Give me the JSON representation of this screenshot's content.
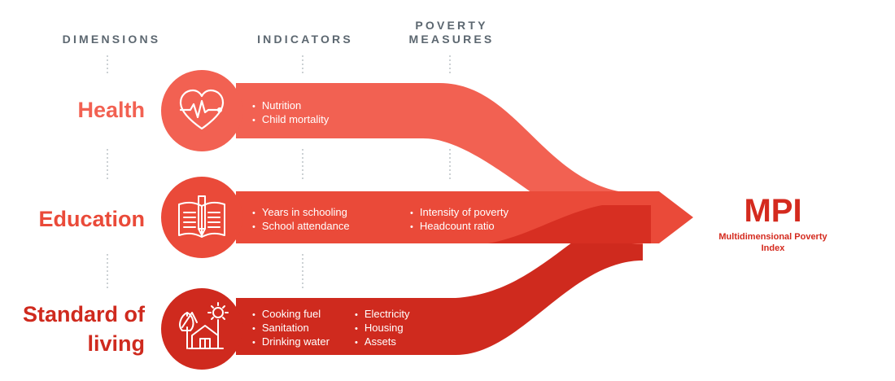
{
  "headers": {
    "dimensions": "DIMENSIONS",
    "indicators": "INDICATORS",
    "poverty_measures_line1": "POVERTY",
    "poverty_measures_line2": "MEASURES"
  },
  "dimensions": {
    "health": "Health",
    "education": "Education",
    "living_line1": "Standard of",
    "living_line2": "living"
  },
  "indicators": {
    "health": [
      "Nutrition",
      "Child mortality"
    ],
    "education": [
      "Years in schooling",
      "School attendance"
    ],
    "living_col1": [
      "Cooking fuel",
      "Sanitation",
      "Drinking water"
    ],
    "living_col2": [
      "Electricity",
      "Housing",
      "Assets"
    ]
  },
  "poverty_measures": [
    "Intensity of poverty",
    "Headcount ratio"
  ],
  "result": {
    "title": "MPI",
    "subtitle_line1": "Multidimensional Poverty",
    "subtitle_line2": "Index"
  },
  "colors": {
    "health": "#f26152",
    "education": "#ea4a39",
    "living": "#cf2a1e",
    "header_text": "#5c6770",
    "divider": "#9aa3aa"
  },
  "icons": {
    "health": "heart-pulse-icon",
    "education": "open-book-pencil-icon",
    "living": "house-tree-sun-icon"
  }
}
